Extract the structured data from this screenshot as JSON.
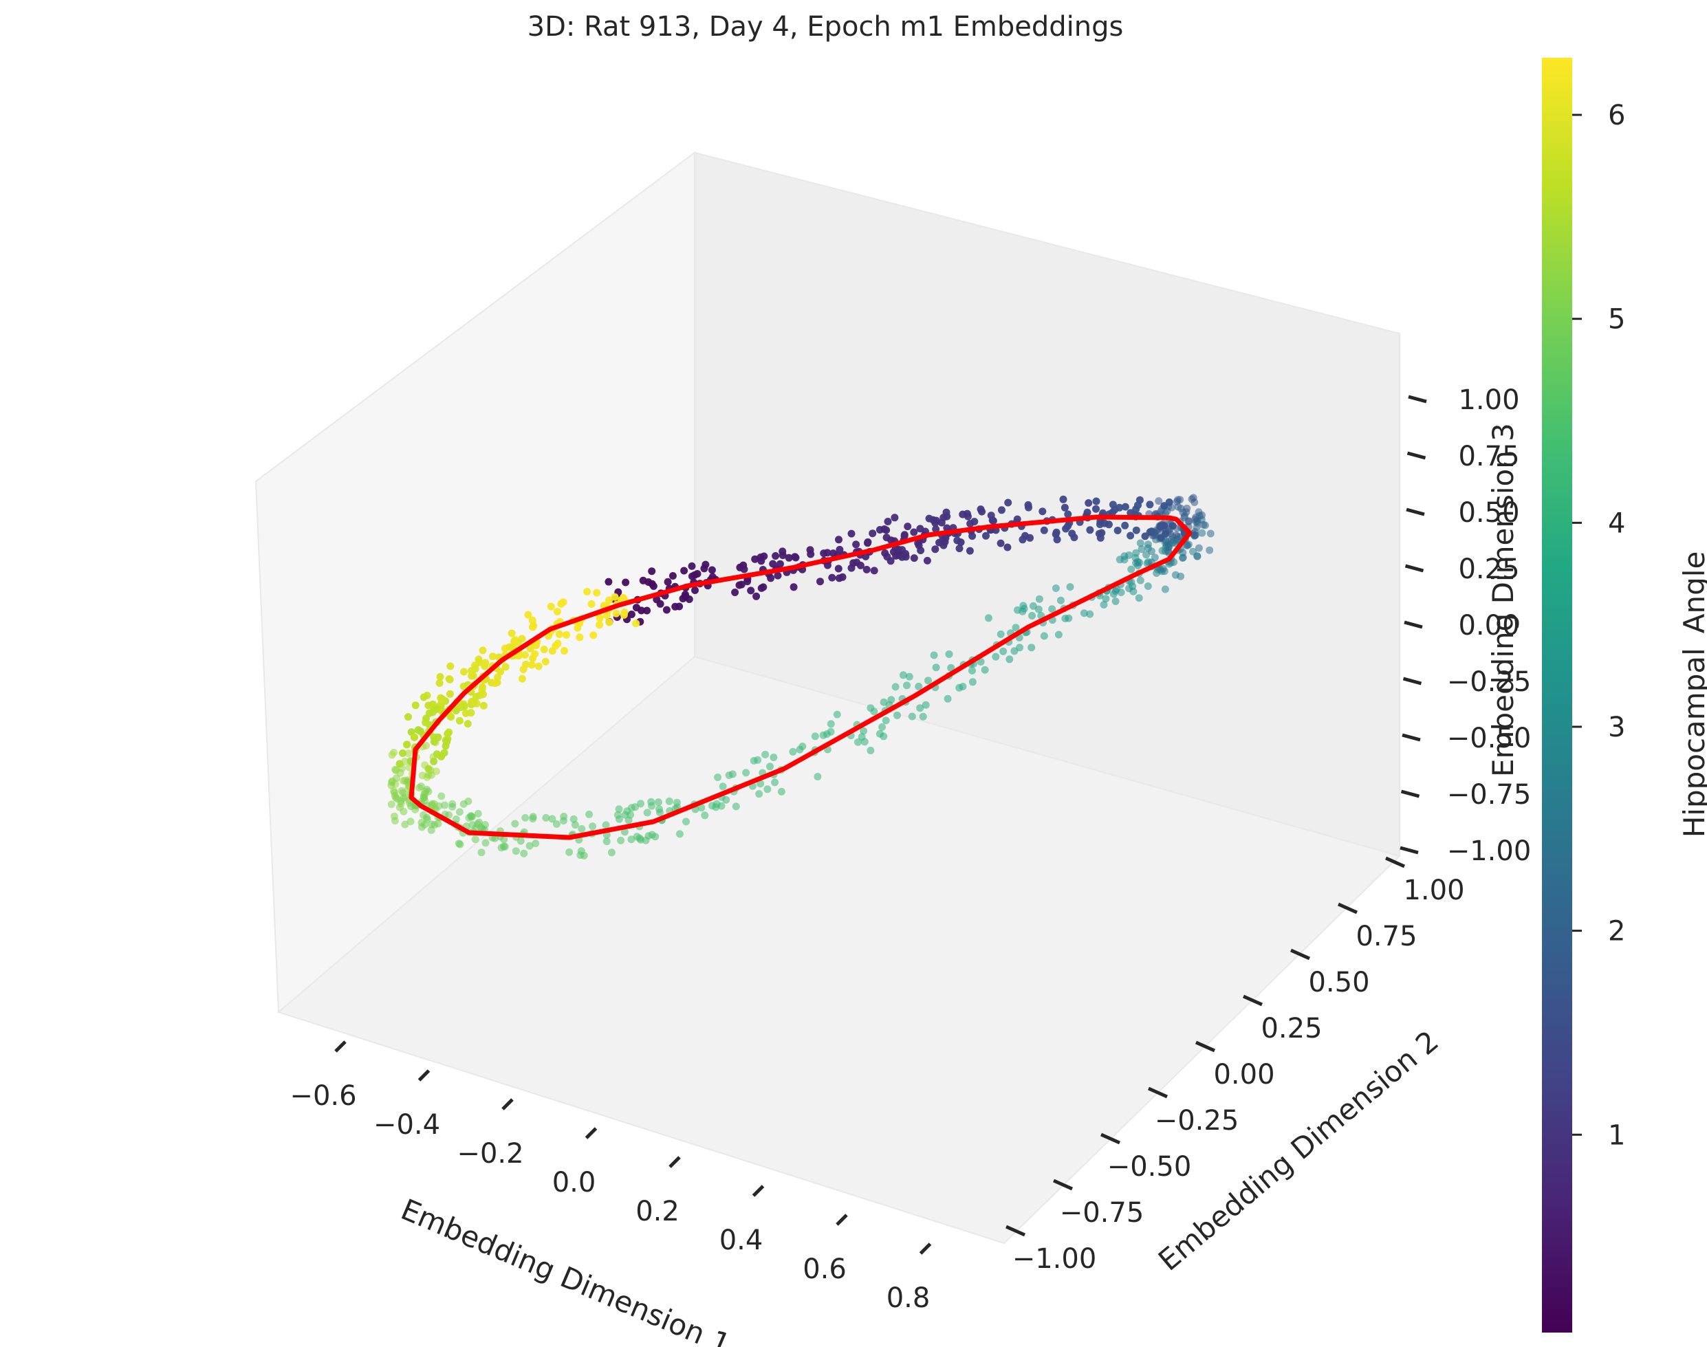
{
  "chart_data": {
    "type": "scatter",
    "title": "3D: Rat 913, Day 4, Epoch m1 Embeddings",
    "xlabel": "Embedding Dimension 1",
    "ylabel": "Embedding Dimension 2",
    "zlabel": "Embedding Dimension 3",
    "x_ticks": [
      "−0.6",
      "−0.4",
      "−0.2",
      "0.0",
      "0.2",
      "0.4",
      "0.6",
      "0.8"
    ],
    "y_ticks": [
      "−1.00",
      "−0.75",
      "−0.50",
      "−0.25",
      "0.00",
      "0.25",
      "0.50",
      "0.75",
      "1.00"
    ],
    "z_ticks": [
      "−1.00",
      "−0.75",
      "−0.50",
      "−0.25",
      "0.00",
      "0.25",
      "0.50",
      "0.75",
      "1.00"
    ],
    "colorbar": {
      "label": "Hippocampal_Angle",
      "ticks": [
        "1",
        "2",
        "3",
        "4",
        "5",
        "6"
      ],
      "tick_values": [
        1,
        2,
        3,
        4,
        5,
        6
      ],
      "range": [
        0.03,
        6.28
      ],
      "colormap": "viridis"
    },
    "trajectory_color": "#ff0000",
    "grid": true,
    "points_note_series": "Embeddings",
    "points": []
  }
}
